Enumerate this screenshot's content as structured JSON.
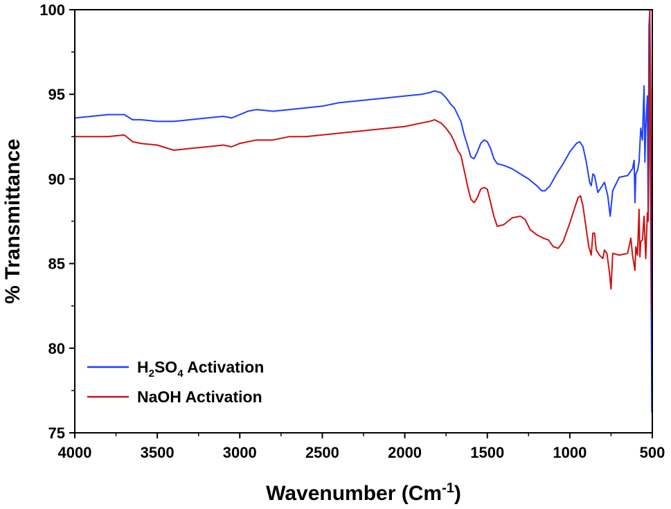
{
  "chart_data": {
    "type": "line",
    "xlabel": {
      "main": "Wavenumber (Cm",
      "sup": "-1",
      "close": ")"
    },
    "ylabel": "% Transmittance",
    "xlim": [
      4000,
      500
    ],
    "ylim": [
      75,
      100
    ],
    "x_reversed": true,
    "x_ticks": [
      4000,
      3500,
      3000,
      2500,
      2000,
      1500,
      1000,
      500
    ],
    "y_ticks": [
      75,
      80,
      85,
      90,
      95,
      100
    ],
    "grid": false,
    "legend_position": "bottom-left",
    "series": [
      {
        "name": "H2SO4 Activation",
        "legend_parts": {
          "a": "H",
          "s1": "2",
          "b": "SO",
          "s2": "4",
          "c": " Activation"
        },
        "color": "#1f3fff",
        "points": [
          [
            4000,
            93.6
          ],
          [
            3900,
            93.7
          ],
          [
            3800,
            93.8
          ],
          [
            3700,
            93.8
          ],
          [
            3650,
            93.5
          ],
          [
            3600,
            93.5
          ],
          [
            3500,
            93.4
          ],
          [
            3400,
            93.4
          ],
          [
            3300,
            93.5
          ],
          [
            3200,
            93.6
          ],
          [
            3100,
            93.7
          ],
          [
            3050,
            93.6
          ],
          [
            3000,
            93.8
          ],
          [
            2950,
            94.0
          ],
          [
            2900,
            94.1
          ],
          [
            2800,
            94.0
          ],
          [
            2700,
            94.1
          ],
          [
            2600,
            94.2
          ],
          [
            2500,
            94.3
          ],
          [
            2400,
            94.5
          ],
          [
            2300,
            94.6
          ],
          [
            2200,
            94.7
          ],
          [
            2100,
            94.8
          ],
          [
            2000,
            94.9
          ],
          [
            1900,
            95.0
          ],
          [
            1850,
            95.1
          ],
          [
            1820,
            95.2
          ],
          [
            1780,
            95.1
          ],
          [
            1750,
            94.8
          ],
          [
            1720,
            94.4
          ],
          [
            1700,
            94.2
          ],
          [
            1680,
            93.8
          ],
          [
            1660,
            93.4
          ],
          [
            1640,
            92.6
          ],
          [
            1620,
            92.0
          ],
          [
            1600,
            91.3
          ],
          [
            1580,
            91.2
          ],
          [
            1560,
            91.6
          ],
          [
            1540,
            92.1
          ],
          [
            1520,
            92.3
          ],
          [
            1500,
            92.2
          ],
          [
            1480,
            91.8
          ],
          [
            1460,
            91.2
          ],
          [
            1440,
            90.9
          ],
          [
            1400,
            90.8
          ],
          [
            1350,
            90.6
          ],
          [
            1300,
            90.3
          ],
          [
            1250,
            90.0
          ],
          [
            1200,
            89.6
          ],
          [
            1170,
            89.3
          ],
          [
            1150,
            89.3
          ],
          [
            1120,
            89.6
          ],
          [
            1080,
            90.3
          ],
          [
            1040,
            90.9
          ],
          [
            1000,
            91.6
          ],
          [
            960,
            92.1
          ],
          [
            940,
            92.2
          ],
          [
            920,
            91.9
          ],
          [
            900,
            91.0
          ],
          [
            880,
            89.8
          ],
          [
            870,
            89.6
          ],
          [
            860,
            90.3
          ],
          [
            850,
            90.2
          ],
          [
            830,
            89.2
          ],
          [
            810,
            89.5
          ],
          [
            790,
            89.8
          ],
          [
            770,
            89.0
          ],
          [
            755,
            87.8
          ],
          [
            740,
            89.3
          ],
          [
            700,
            90.1
          ],
          [
            650,
            90.2
          ],
          [
            620,
            90.6
          ],
          [
            610,
            91.1
          ],
          [
            605,
            88.6
          ],
          [
            600,
            90.3
          ],
          [
            590,
            90.5
          ],
          [
            580,
            91.0
          ],
          [
            570,
            93.0
          ],
          [
            560,
            92.3
          ],
          [
            550,
            95.5
          ],
          [
            545,
            91.0
          ],
          [
            540,
            93.0
          ],
          [
            530,
            94.9
          ],
          [
            525,
            88.0
          ],
          [
            520,
            99.0
          ],
          [
            515,
            100.0
          ],
          [
            510,
            87.7
          ],
          [
            505,
            80.0
          ],
          [
            503,
            76.2
          ]
        ]
      },
      {
        "name": "NaOH Activation",
        "color": "#cc1111",
        "points": [
          [
            4000,
            92.5
          ],
          [
            3900,
            92.5
          ],
          [
            3800,
            92.5
          ],
          [
            3700,
            92.6
          ],
          [
            3650,
            92.2
          ],
          [
            3600,
            92.1
          ],
          [
            3500,
            92.0
          ],
          [
            3400,
            91.7
          ],
          [
            3300,
            91.8
          ],
          [
            3200,
            91.9
          ],
          [
            3100,
            92.0
          ],
          [
            3050,
            91.9
          ],
          [
            3000,
            92.1
          ],
          [
            2900,
            92.3
          ],
          [
            2800,
            92.3
          ],
          [
            2700,
            92.5
          ],
          [
            2600,
            92.5
          ],
          [
            2500,
            92.6
          ],
          [
            2400,
            92.7
          ],
          [
            2300,
            92.8
          ],
          [
            2200,
            92.9
          ],
          [
            2100,
            93.0
          ],
          [
            2000,
            93.1
          ],
          [
            1900,
            93.3
          ],
          [
            1850,
            93.4
          ],
          [
            1820,
            93.5
          ],
          [
            1780,
            93.3
          ],
          [
            1750,
            93.0
          ],
          [
            1720,
            92.6
          ],
          [
            1700,
            92.2
          ],
          [
            1680,
            91.7
          ],
          [
            1660,
            91.4
          ],
          [
            1640,
            90.5
          ],
          [
            1620,
            89.6
          ],
          [
            1600,
            88.8
          ],
          [
            1580,
            88.6
          ],
          [
            1560,
            88.9
          ],
          [
            1540,
            89.4
          ],
          [
            1520,
            89.5
          ],
          [
            1500,
            89.4
          ],
          [
            1480,
            88.6
          ],
          [
            1460,
            87.8
          ],
          [
            1440,
            87.2
          ],
          [
            1400,
            87.3
          ],
          [
            1350,
            87.7
          ],
          [
            1300,
            87.8
          ],
          [
            1270,
            87.6
          ],
          [
            1240,
            87.0
          ],
          [
            1200,
            86.7
          ],
          [
            1160,
            86.5
          ],
          [
            1130,
            86.4
          ],
          [
            1100,
            86.0
          ],
          [
            1070,
            85.9
          ],
          [
            1040,
            86.3
          ],
          [
            1000,
            87.4
          ],
          [
            970,
            88.3
          ],
          [
            950,
            88.9
          ],
          [
            935,
            89.0
          ],
          [
            920,
            88.4
          ],
          [
            900,
            87.0
          ],
          [
            885,
            86.0
          ],
          [
            870,
            85.5
          ],
          [
            860,
            86.8
          ],
          [
            850,
            86.8
          ],
          [
            840,
            85.8
          ],
          [
            820,
            85.5
          ],
          [
            800,
            85.3
          ],
          [
            790,
            85.8
          ],
          [
            775,
            85.6
          ],
          [
            760,
            84.5
          ],
          [
            750,
            83.5
          ],
          [
            740,
            85.6
          ],
          [
            700,
            85.5
          ],
          [
            650,
            85.6
          ],
          [
            630,
            86.5
          ],
          [
            620,
            85.5
          ],
          [
            605,
            84.6
          ],
          [
            600,
            86.0
          ],
          [
            590,
            85.5
          ],
          [
            580,
            88.2
          ],
          [
            575,
            85.4
          ],
          [
            570,
            86.3
          ],
          [
            560,
            86.4
          ],
          [
            550,
            87.8
          ],
          [
            540,
            85.3
          ],
          [
            530,
            88.0
          ],
          [
            525,
            87.5
          ],
          [
            520,
            92.0
          ],
          [
            515,
            100.0
          ],
          [
            510,
            95.0
          ],
          [
            505,
            85.0
          ],
          [
            503,
            82.0
          ]
        ]
      }
    ]
  }
}
